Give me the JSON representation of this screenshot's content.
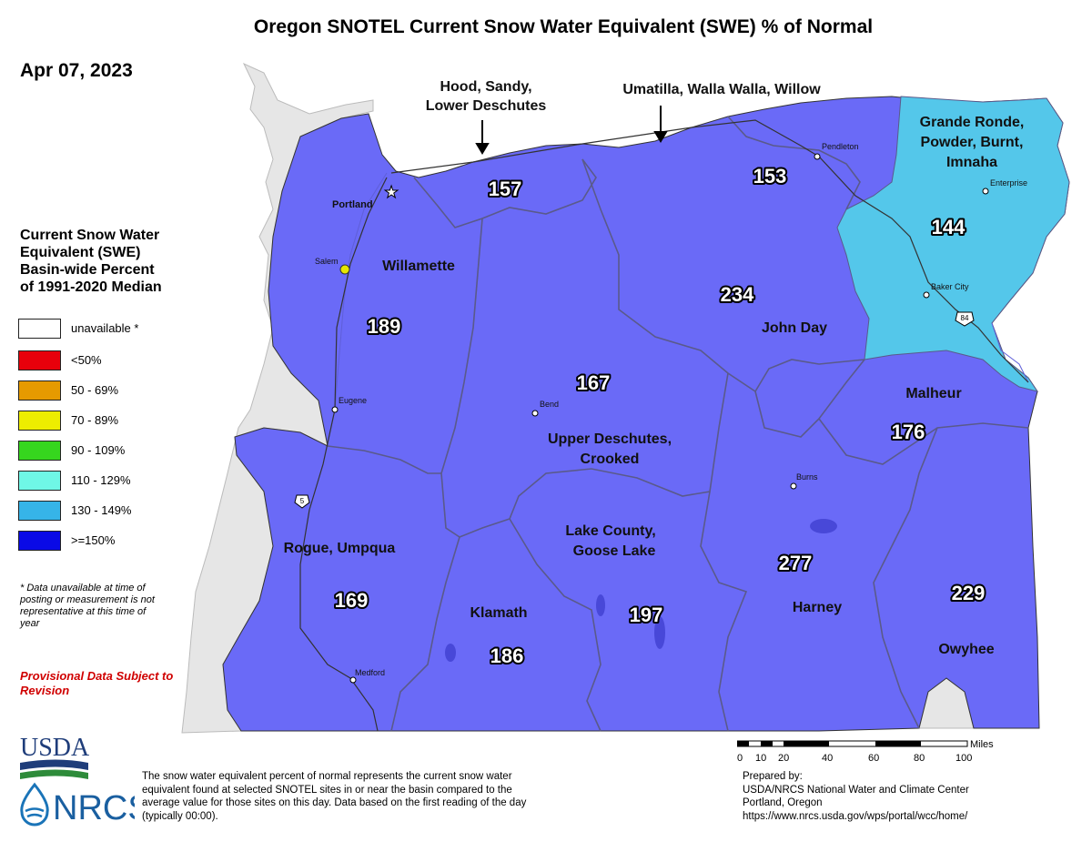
{
  "title": "Oregon SNOTEL Current Snow Water Equivalent (SWE) % of Normal",
  "date": "Apr 07, 2023",
  "legend": {
    "title_lines": [
      "Current Snow Water",
      "Equivalent (SWE)",
      "Basin-wide Percent",
      "of 1991-2020 Median"
    ],
    "items": [
      {
        "label": "unavailable *",
        "color": "#ffffff"
      },
      {
        "label": "<50%",
        "color": "#e8000b"
      },
      {
        "label": "50 - 69%",
        "color": "#e69a00"
      },
      {
        "label": "70 - 89%",
        "color": "#eded00"
      },
      {
        "label": "90 - 109%",
        "color": "#36d61e"
      },
      {
        "label": "110 - 129%",
        "color": "#6ff7e6"
      },
      {
        "label": "130 - 149%",
        "color": "#36b4e8"
      },
      {
        "label": ">=150%",
        "color": "#0a0ae6"
      }
    ]
  },
  "footnote": "*  Data unavailable at time of posting or measurement is not representative at this time of year",
  "provisional": "Provisional Data Subject to Revision",
  "colors": {
    "basin_150plus": "#6a6af7",
    "basin_130_149": "#54c7ea",
    "land": "#e6e6e6"
  },
  "basins": [
    {
      "name": "Hood, Sandy, Lower Deschutes",
      "lines": [
        "Hood, Sandy,",
        "Lower Deschutes"
      ],
      "value": "157",
      "category": ">=150%"
    },
    {
      "name": "Umatilla, Walla Walla, Willow",
      "lines": [
        "Umatilla, Walla Walla, Willow"
      ],
      "value": "153",
      "category": ">=150%"
    },
    {
      "name": "Grande Ronde, Powder, Burnt, Imnaha",
      "lines": [
        "Grande Ronde,",
        "Powder, Burnt,",
        "Imnaha"
      ],
      "value": "144",
      "category": "130 - 149%"
    },
    {
      "name": "Willamette",
      "lines": [
        "Willamette"
      ],
      "value": "189",
      "category": ">=150%"
    },
    {
      "name": "John Day",
      "lines": [
        "John Day"
      ],
      "value": "234",
      "category": ">=150%"
    },
    {
      "name": "Upper Deschutes, Crooked",
      "lines": [
        "Upper Deschutes,",
        "Crooked"
      ],
      "value": "167",
      "category": ">=150%"
    },
    {
      "name": "Malheur",
      "lines": [
        "Malheur"
      ],
      "value": "176",
      "category": ">=150%"
    },
    {
      "name": "Rogue, Umpqua",
      "lines": [
        "Rogue, Umpqua"
      ],
      "value": "169",
      "category": ">=150%"
    },
    {
      "name": "Lake County, Goose Lake",
      "lines": [
        "Lake County,",
        "Goose Lake"
      ],
      "value": "197",
      "category": ">=150%"
    },
    {
      "name": "Klamath",
      "lines": [
        "Klamath"
      ],
      "value": "186",
      "category": ">=150%"
    },
    {
      "name": "Harney",
      "lines": [
        "Harney"
      ],
      "value": "277",
      "category": ">=150%"
    },
    {
      "name": "Owyhee",
      "lines": [
        "Owyhee"
      ],
      "value": "229",
      "category": ">=150%"
    }
  ],
  "cities": [
    "Portland",
    "Salem",
    "Eugene",
    "Medford",
    "Bend",
    "Burns",
    "Pendleton",
    "Enterprise",
    "Baker City"
  ],
  "highways": [
    "5",
    "84"
  ],
  "scale": {
    "unit": "Miles",
    "ticks": [
      "0",
      "10",
      "20",
      "40",
      "60",
      "80",
      "100"
    ]
  },
  "description": "The snow water equivalent percent of normal represents the current snow water equivalent found at selected SNOTEL sites in or near the basin compared to the average value for those sites on this day. Data based on the first reading of the day (typically 00:00).",
  "prepared": [
    "Prepared by:",
    "USDA/NRCS National Water and Climate Center",
    "Portland, Oregon",
    "https://www.nrcs.usda.gov/wps/portal/wcc/home/"
  ],
  "logos": {
    "usda": "USDA",
    "nrcs": "NRCS"
  }
}
